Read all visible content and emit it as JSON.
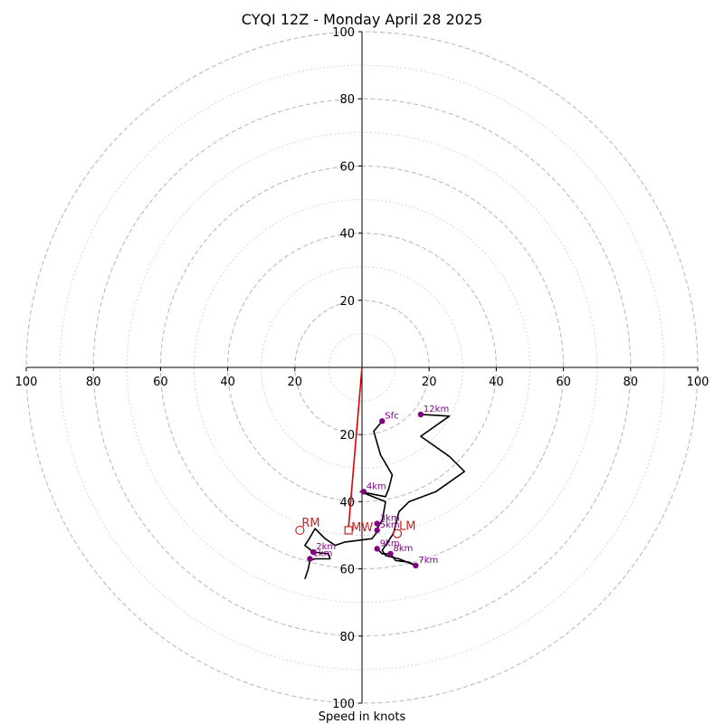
{
  "chart_data": {
    "type": "hodograph",
    "title": "CYQI 12Z - Monday April 28 2025",
    "xlabel": "Speed in knots",
    "range": [
      -100,
      100
    ],
    "ring_major": [
      20,
      40,
      60,
      80,
      100
    ],
    "ring_minor": [
      10,
      30,
      50,
      70,
      90
    ],
    "ticks": {
      "left": [
        "100",
        "80",
        "60",
        "40",
        "20"
      ],
      "right": [
        "20",
        "40",
        "60",
        "80",
        "100"
      ],
      "top": [
        "20",
        "40",
        "60",
        "80",
        "100"
      ],
      "bottom": [
        "20",
        "40",
        "60",
        "80",
        "100"
      ]
    },
    "grid": true,
    "colors": {
      "profile": "#000000",
      "markers": "#800080",
      "motion": "#cc2222",
      "mean_wind_vector": "#dd0000",
      "grid_major": "#bbbbbb",
      "grid_minor": "#cccccc"
    },
    "profile": [
      [
        6,
        -16
      ],
      [
        3.5,
        -19
      ],
      [
        5.5,
        -26
      ],
      [
        9,
        -32
      ],
      [
        8,
        -36
      ],
      [
        7,
        -38.5
      ],
      [
        -0.5,
        -37
      ],
      [
        7,
        -40
      ],
      [
        6.5,
        -43
      ],
      [
        6,
        -45.5
      ],
      [
        4.5,
        -48
      ],
      [
        4.5,
        -49
      ],
      [
        3,
        -51
      ],
      [
        -5,
        -52
      ],
      [
        -8,
        -53
      ],
      [
        -11,
        -51
      ],
      [
        -12,
        -50
      ],
      [
        -14,
        -48
      ],
      [
        -16,
        -51.5
      ],
      [
        -17,
        -53
      ],
      [
        -14.5,
        -55
      ],
      [
        -10,
        -55.5
      ],
      [
        -9.5,
        -57
      ],
      [
        -14,
        -57
      ],
      [
        -15.5,
        -57.5
      ],
      [
        -16,
        -60
      ],
      [
        -17,
        -63
      ]
    ],
    "profile_upper": [
      [
        4.5,
        -54
      ],
      [
        6,
        -55.5
      ],
      [
        8.5,
        -55.5
      ],
      [
        10,
        -57.5
      ],
      [
        14,
        -58
      ],
      [
        16,
        -59
      ],
      [
        11,
        -57
      ],
      [
        7,
        -56
      ],
      [
        6,
        -54.5
      ],
      [
        8,
        -51.5
      ],
      [
        9,
        -50
      ],
      [
        9.5,
        -49
      ],
      [
        11,
        -43
      ],
      [
        14,
        -40
      ],
      [
        22,
        -37
      ],
      [
        30.5,
        -31
      ],
      [
        26,
        -26.5
      ],
      [
        17.5,
        -20.5
      ],
      [
        26,
        -14.5
      ],
      [
        17.5,
        -14
      ]
    ],
    "height_markers": [
      {
        "label": "Sfc",
        "u": 6,
        "v": -16
      },
      {
        "label": "4km",
        "u": 0.5,
        "v": -37
      },
      {
        "label": "3km",
        "u": 4.5,
        "v": -46.5
      },
      {
        "label": "5km",
        "u": 4.5,
        "v": -48.5
      },
      {
        "label": "2km",
        "u": -14.5,
        "v": -55
      },
      {
        "label": "1km",
        "u": -15.5,
        "v": -57
      },
      {
        "label": "9km",
        "u": 4.5,
        "v": -54
      },
      {
        "label": "8km",
        "u": 8.5,
        "v": -55.5
      },
      {
        "label": "7km",
        "u": 16,
        "v": -59
      },
      {
        "label": "12km",
        "u": 17.5,
        "v": -14
      }
    ],
    "storm_motion": {
      "rm": {
        "label": "RM",
        "u": -18.5,
        "v": -48.5
      },
      "lm": {
        "label": "LM",
        "u": 10.5,
        "v": -49.5
      },
      "mw": {
        "label": "MW",
        "u": -4,
        "v": -48.5
      },
      "mean_vector_tip": {
        "u": -4,
        "v": -47.5
      }
    }
  }
}
